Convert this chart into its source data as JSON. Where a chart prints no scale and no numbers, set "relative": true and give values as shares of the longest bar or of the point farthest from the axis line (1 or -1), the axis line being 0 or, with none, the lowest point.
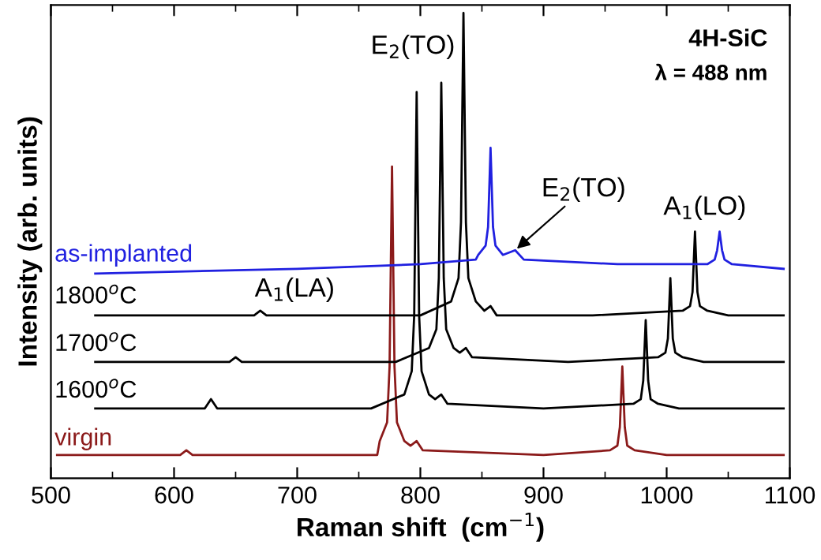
{
  "chart_data": {
    "type": "line",
    "xlabel": "Raman shift  (cm$^{−1}$)",
    "ylabel": "Intensity (arb. units)",
    "relative": true,
    "xlim": [
      500,
      1100
    ],
    "xticks": [
      500,
      600,
      700,
      800,
      900,
      1000,
      1100
    ],
    "grid": false,
    "legend": false,
    "marker": "none",
    "line_style": "solid",
    "tick_labels": "x",
    "series": [
      {
        "name": "virgin",
        "color": "#8b1a1a",
        "x": [
          505,
          605,
          610,
          615,
          765,
          767,
          773,
          775,
          777,
          779,
          781,
          787,
          792,
          797,
          802,
          900,
          954,
          960,
          962,
          964,
          966,
          968,
          974,
          1000,
          1095
        ],
        "values": [
          0.05,
          0.05,
          0.06,
          0.05,
          0.05,
          0.08,
          0.12,
          0.24,
          0.67,
          0.24,
          0.12,
          0.08,
          0.07,
          0.08,
          0.06,
          0.05,
          0.06,
          0.07,
          0.11,
          0.24,
          0.11,
          0.07,
          0.06,
          0.05,
          0.05
        ]
      },
      {
        "name": "1600$^{o}$C",
        "color": "#000000",
        "x": [
          536,
          625,
          630,
          635,
          760,
          787,
          793,
          795,
          797,
          799,
          801,
          807,
          812,
          817,
          822,
          900,
          973,
          979,
          981,
          983,
          985,
          987,
          993,
          1010,
          1095
        ],
        "values": [
          0.15,
          0.15,
          0.17,
          0.15,
          0.15,
          0.18,
          0.23,
          0.35,
          0.83,
          0.35,
          0.23,
          0.18,
          0.17,
          0.18,
          0.16,
          0.15,
          0.16,
          0.17,
          0.21,
          0.34,
          0.21,
          0.17,
          0.16,
          0.15,
          0.15
        ]
      },
      {
        "name": "1700$^{o}$C",
        "color": "#000000",
        "x": [
          536,
          645,
          650,
          655,
          780,
          807,
          813,
          815,
          817,
          819,
          821,
          827,
          832,
          837,
          842,
          920,
          993,
          999,
          1001,
          1003,
          1005,
          1007,
          1013,
          1030,
          1095
        ],
        "values": [
          0.25,
          0.25,
          0.26,
          0.25,
          0.25,
          0.28,
          0.32,
          0.43,
          0.85,
          0.43,
          0.32,
          0.28,
          0.27,
          0.28,
          0.26,
          0.25,
          0.26,
          0.27,
          0.3,
          0.43,
          0.3,
          0.27,
          0.26,
          0.25,
          0.25
        ]
      },
      {
        "name": "1800$^{o}$C",
        "color": "#000000",
        "x": [
          536,
          665,
          670,
          675,
          800,
          825,
          831,
          833,
          835,
          837,
          839,
          845,
          852,
          857,
          862,
          940,
          1013,
          1019,
          1021,
          1023,
          1025,
          1027,
          1033,
          1050,
          1095
        ],
        "values": [
          0.35,
          0.35,
          0.36,
          0.35,
          0.35,
          0.38,
          0.43,
          0.55,
          1.0,
          0.55,
          0.43,
          0.38,
          0.36,
          0.37,
          0.35,
          0.35,
          0.36,
          0.37,
          0.4,
          0.53,
          0.4,
          0.37,
          0.36,
          0.35,
          0.35
        ]
      },
      {
        "name": "as-implanted",
        "color": "#2020e0",
        "x": [
          536,
          700,
          800,
          845,
          847,
          853,
          855,
          857,
          859,
          861,
          867,
          877,
          884,
          960,
          1033,
          1039,
          1041,
          1043,
          1045,
          1047,
          1053,
          1095
        ],
        "values": [
          0.44,
          0.45,
          0.46,
          0.47,
          0.48,
          0.5,
          0.54,
          0.71,
          0.54,
          0.5,
          0.48,
          0.49,
          0.47,
          0.46,
          0.46,
          0.47,
          0.49,
          0.53,
          0.49,
          0.47,
          0.46,
          0.45
        ]
      }
    ],
    "annotations": [
      "E$_{2}$(TO)",
      "A$_{1}$(LA)",
      "A$_{1}$(LO)",
      {
        "text": "E$_{2}$(TO)",
        "x": 877,
        "y": 0.49
      },
      "4H-SiC",
      "λ = 488 nm"
    ]
  }
}
